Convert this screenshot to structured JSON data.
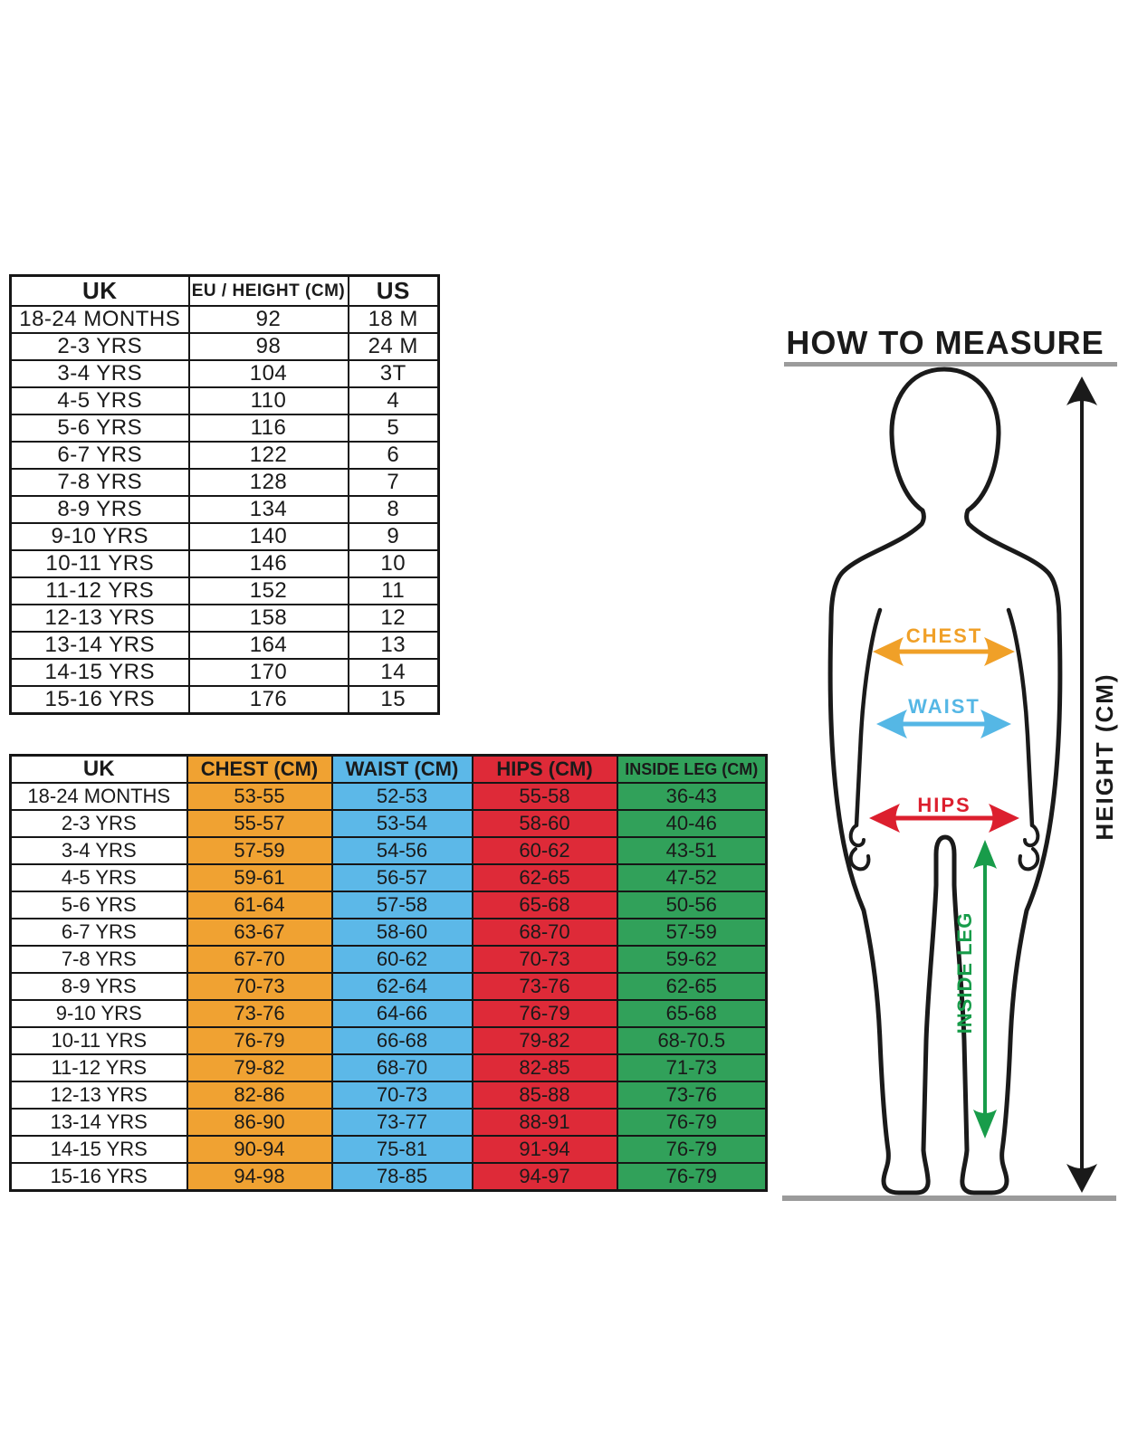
{
  "page": {
    "background": "#ffffff"
  },
  "conversion_table": {
    "headers": [
      "UK",
      "EU / HEIGHT (CM)",
      "US"
    ],
    "rows": [
      [
        "18-24 MONTHS",
        "92",
        "18 M"
      ],
      [
        "2-3 YRS",
        "98",
        "24 M"
      ],
      [
        "3-4 YRS",
        "104",
        "3T"
      ],
      [
        "4-5 YRS",
        "110",
        "4"
      ],
      [
        "5-6 YRS",
        "116",
        "5"
      ],
      [
        "6-7 YRS",
        "122",
        "6"
      ],
      [
        "7-8 YRS",
        "128",
        "7"
      ],
      [
        "8-9 YRS",
        "134",
        "8"
      ],
      [
        "9-10 YRS",
        "140",
        "9"
      ],
      [
        "10-11 YRS",
        "146",
        "10"
      ],
      [
        "11-12 YRS",
        "152",
        "11"
      ],
      [
        "12-13 YRS",
        "158",
        "12"
      ],
      [
        "13-14 YRS",
        "164",
        "13"
      ],
      [
        "14-15 YRS",
        "170",
        "14"
      ],
      [
        "15-16 YRS",
        "176",
        "15"
      ]
    ]
  },
  "measurement_table": {
    "headers": [
      "UK",
      "CHEST (CM)",
      "WAIST (CM)",
      "HIPS (CM)",
      "INSIDE LEG (CM)"
    ],
    "column_colors": {
      "chest": "#F0A232",
      "waist": "#5CB8E8",
      "hips": "#DE2A38",
      "inside_leg": "#31A15A"
    },
    "rows": [
      [
        "18-24 MONTHS",
        "53-55",
        "52-53",
        "55-58",
        "36-43"
      ],
      [
        "2-3 YRS",
        "55-57",
        "53-54",
        "58-60",
        "40-46"
      ],
      [
        "3-4 YRS",
        "57-59",
        "54-56",
        "60-62",
        "43-51"
      ],
      [
        "4-5 YRS",
        "59-61",
        "56-57",
        "62-65",
        "47-52"
      ],
      [
        "5-6 YRS",
        "61-64",
        "57-58",
        "65-68",
        "50-56"
      ],
      [
        "6-7 YRS",
        "63-67",
        "58-60",
        "68-70",
        "57-59"
      ],
      [
        "7-8 YRS",
        "67-70",
        "60-62",
        "70-73",
        "59-62"
      ],
      [
        "8-9 YRS",
        "70-73",
        "62-64",
        "73-76",
        "62-65"
      ],
      [
        "9-10 YRS",
        "73-76",
        "64-66",
        "76-79",
        "65-68"
      ],
      [
        "10-11 YRS",
        "76-79",
        "66-68",
        "79-82",
        "68-70.5"
      ],
      [
        "11-12 YRS",
        "79-82",
        "68-70",
        "82-85",
        "71-73"
      ],
      [
        "12-13 YRS",
        "82-86",
        "70-73",
        "85-88",
        "73-76"
      ],
      [
        "13-14 YRS",
        "86-90",
        "73-77",
        "88-91",
        "76-79"
      ],
      [
        "14-15 YRS",
        "90-94",
        "75-81",
        "91-94",
        "76-79"
      ],
      [
        "15-16 YRS",
        "94-98",
        "78-85",
        "94-97",
        "76-79"
      ]
    ]
  },
  "diagram": {
    "title": "HOW TO MEASURE",
    "labels": {
      "chest": "CHEST",
      "waist": "WAIST",
      "hips": "HIPS",
      "inside_leg": "INSIDE LEG",
      "height": "HEIGHT (CM)"
    },
    "colors": {
      "chest": "#F0A028",
      "waist": "#55B7E5",
      "hips": "#DC1F2E",
      "inside_leg": "#189C4A",
      "height_arrow": "#1A1A1A",
      "figure": "#1A1A1A",
      "baseline": "#9B9B9B"
    }
  }
}
